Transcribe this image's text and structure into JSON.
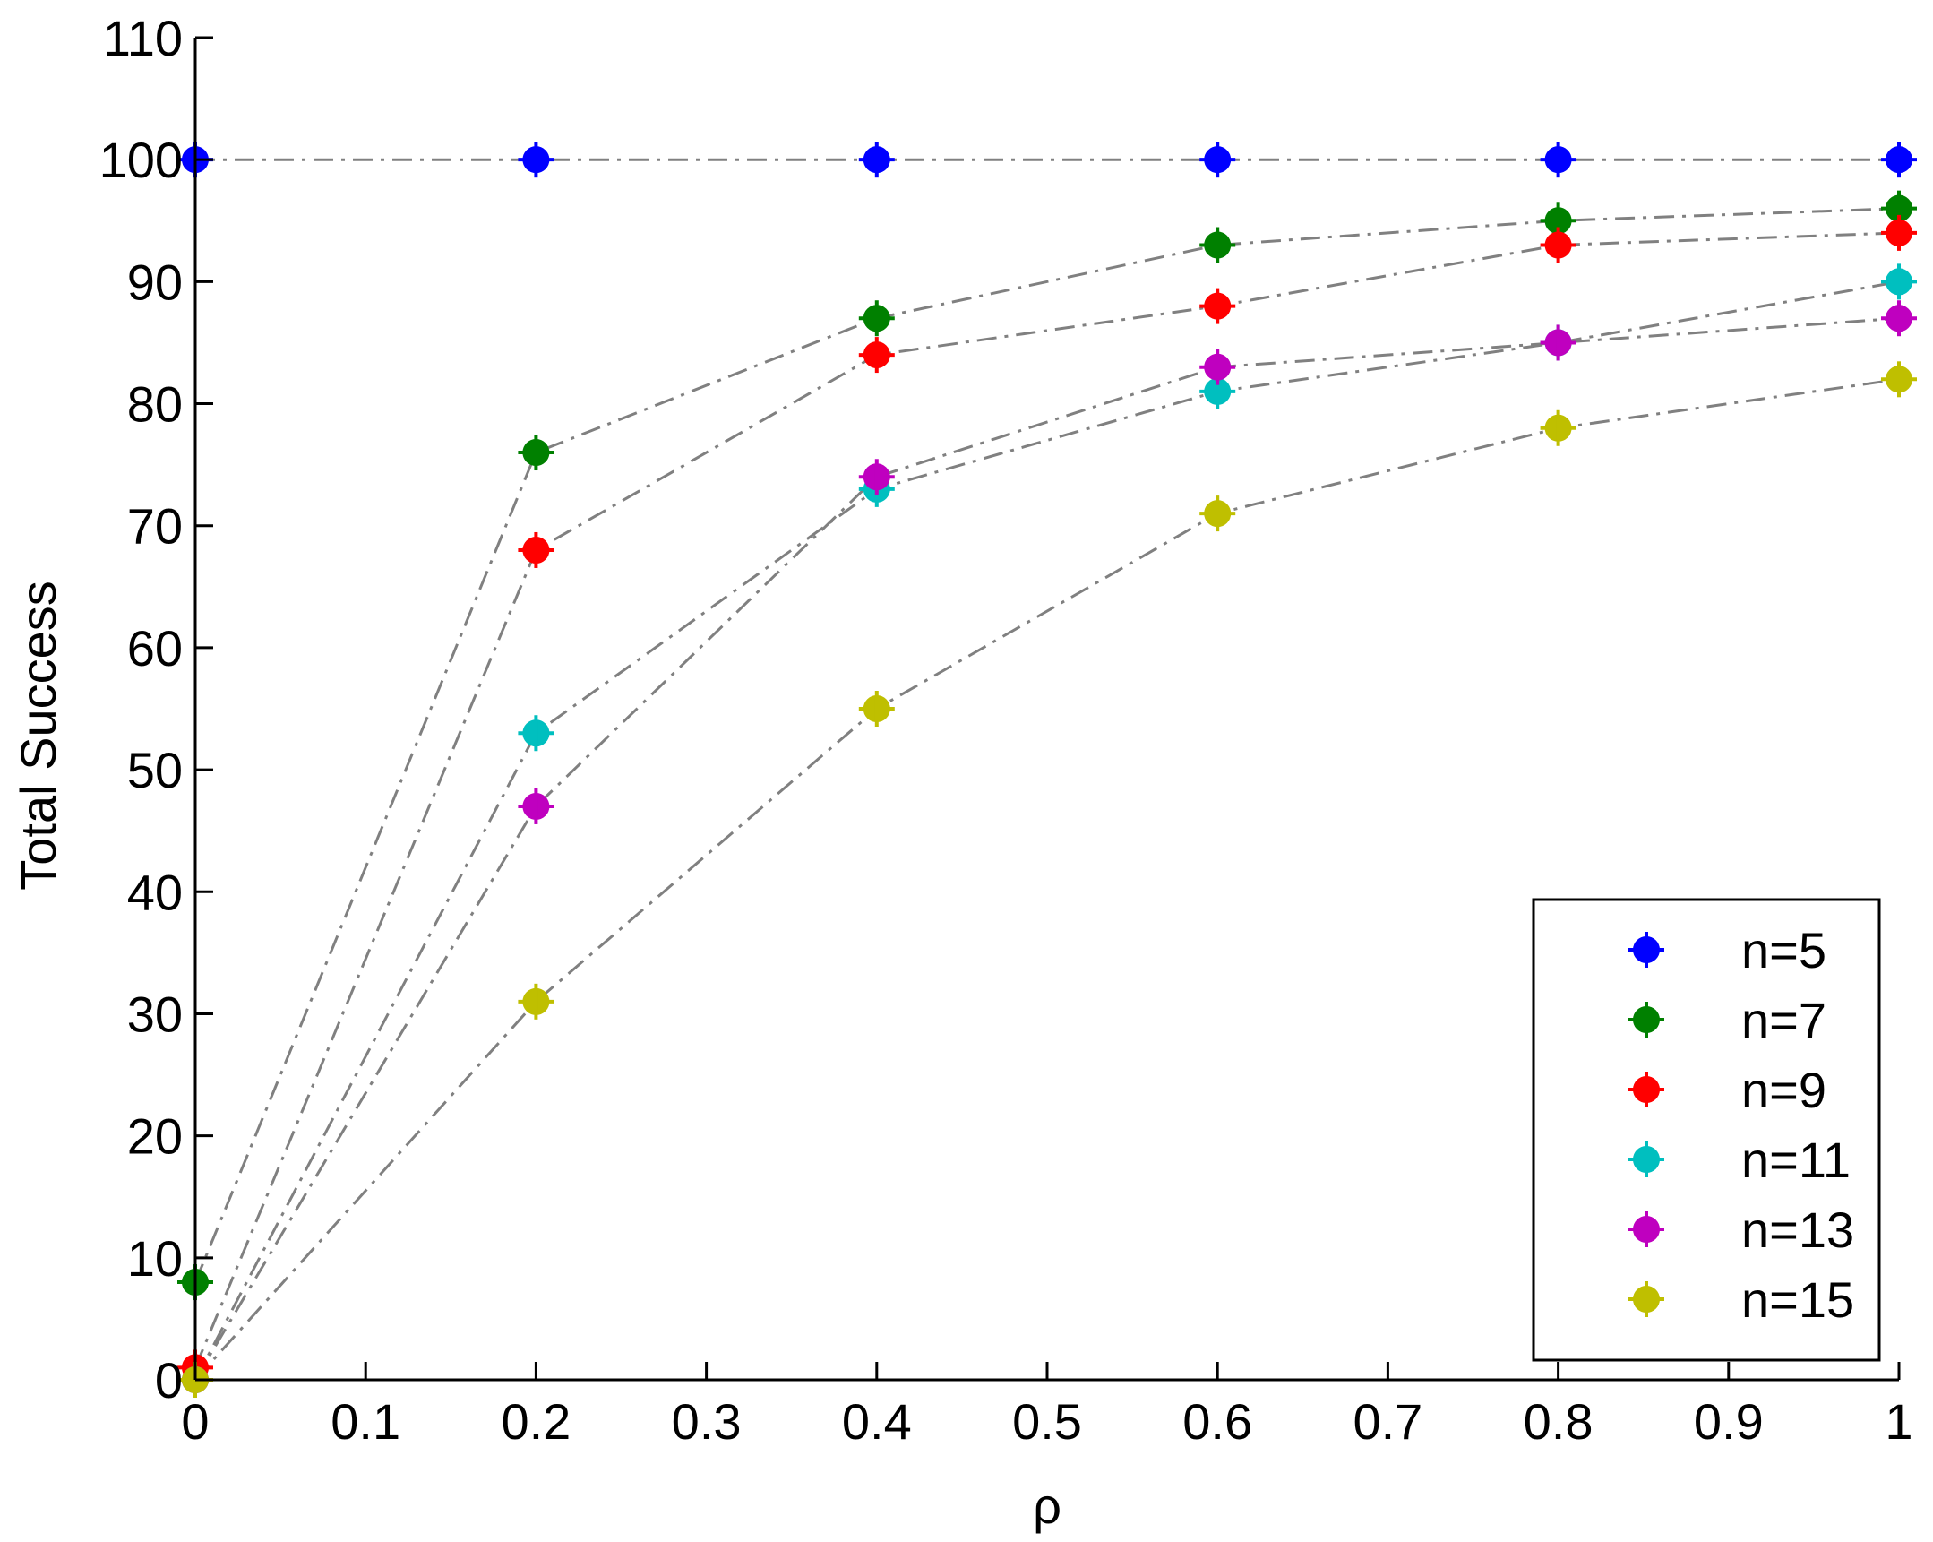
{
  "chart_data": {
    "type": "line",
    "title": "",
    "xlabel": "ρ",
    "ylabel": "Total Success",
    "xlim": [
      0,
      1
    ],
    "ylim": [
      0,
      110
    ],
    "xticks": [
      0,
      0.1,
      0.2,
      0.3,
      0.4,
      0.5,
      0.6,
      0.7,
      0.8,
      0.9,
      1
    ],
    "xtick_labels": [
      "0",
      "0.1",
      "0.2",
      "0.3",
      "0.4",
      "0.5",
      "0.6",
      "0.7",
      "0.8",
      "0.9",
      "1"
    ],
    "yticks": [
      0,
      10,
      20,
      30,
      40,
      50,
      60,
      70,
      80,
      90,
      100,
      110
    ],
    "ytick_labels": [
      "0",
      "10",
      "20",
      "30",
      "40",
      "50",
      "60",
      "70",
      "80",
      "90",
      "100",
      "110"
    ],
    "grid": false,
    "legend_position": "bottom-right",
    "line_style": "dash-dot",
    "line_color": "#808080",
    "x": [
      0,
      0.2,
      0.4,
      0.6,
      0.8,
      1
    ],
    "series": [
      {
        "name": "n=5",
        "color": "#0000ff",
        "values": [
          100,
          100,
          100,
          100,
          100,
          100
        ]
      },
      {
        "name": "n=7",
        "color": "#008000",
        "values": [
          8,
          76,
          87,
          93,
          95,
          96
        ]
      },
      {
        "name": "n=9",
        "color": "#ff0000",
        "values": [
          1,
          68,
          84,
          88,
          93,
          94
        ]
      },
      {
        "name": "n=11",
        "color": "#00bfbf",
        "values": [
          0,
          53,
          73,
          81,
          85,
          90
        ]
      },
      {
        "name": "n=13",
        "color": "#bf00bf",
        "values": [
          0,
          47,
          74,
          83,
          85,
          87
        ]
      },
      {
        "name": "n=15",
        "color": "#bfbf00",
        "values": [
          0,
          31,
          55,
          71,
          78,
          82
        ]
      }
    ]
  }
}
